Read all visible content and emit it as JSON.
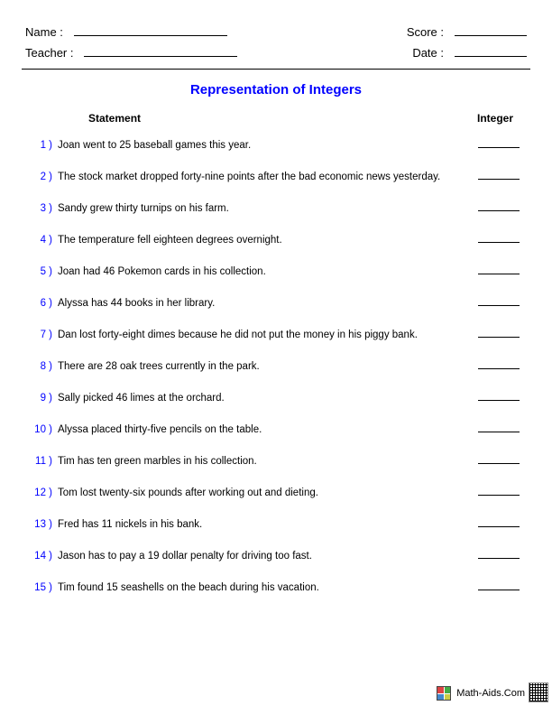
{
  "header": {
    "name_label": "Name :",
    "teacher_label": "Teacher :",
    "score_label": "Score :",
    "date_label": "Date :"
  },
  "title": "Representation of Integers",
  "columns": {
    "statement": "Statement",
    "integer": "Integer"
  },
  "problems": [
    {
      "n": "1 )",
      "text": "Joan went to 25 baseball games this year."
    },
    {
      "n": "2 )",
      "text": "The stock market dropped forty-nine points after the bad economic news yesterday."
    },
    {
      "n": "3 )",
      "text": "Sandy grew thirty turnips on his farm."
    },
    {
      "n": "4 )",
      "text": "The temperature fell eighteen degrees overnight."
    },
    {
      "n": "5 )",
      "text": "Joan had 46 Pokemon cards in his collection."
    },
    {
      "n": "6 )",
      "text": "Alyssa has 44 books in her library."
    },
    {
      "n": "7 )",
      "text": "Dan lost forty-eight dimes because he did not put the money in his piggy bank."
    },
    {
      "n": "8 )",
      "text": "There are 28 oak trees currently in the park."
    },
    {
      "n": "9 )",
      "text": "Sally picked 46 limes at the orchard."
    },
    {
      "n": "10 )",
      "text": "Alyssa placed thirty-five pencils on the table."
    },
    {
      "n": "11 )",
      "text": "Tim has ten green marbles in his collection."
    },
    {
      "n": "12 )",
      "text": "Tom lost twenty-six pounds after working out and dieting."
    },
    {
      "n": "13 )",
      "text": "Fred has 11 nickels in his bank."
    },
    {
      "n": "14 )",
      "text": "Jason has to pay a 19 dollar penalty for driving too fast."
    },
    {
      "n": "15 )",
      "text": "Tim found 15 seashells on the beach during his vacation."
    }
  ],
  "footer": {
    "site": "Math-Aids.Com"
  },
  "colors": {
    "accent": "#0000ff",
    "text": "#000000",
    "background": "#ffffff"
  },
  "fonts": {
    "body_pt": 11.5,
    "title_pt": 15,
    "header_pt": 13,
    "colhead_pt": 12
  }
}
